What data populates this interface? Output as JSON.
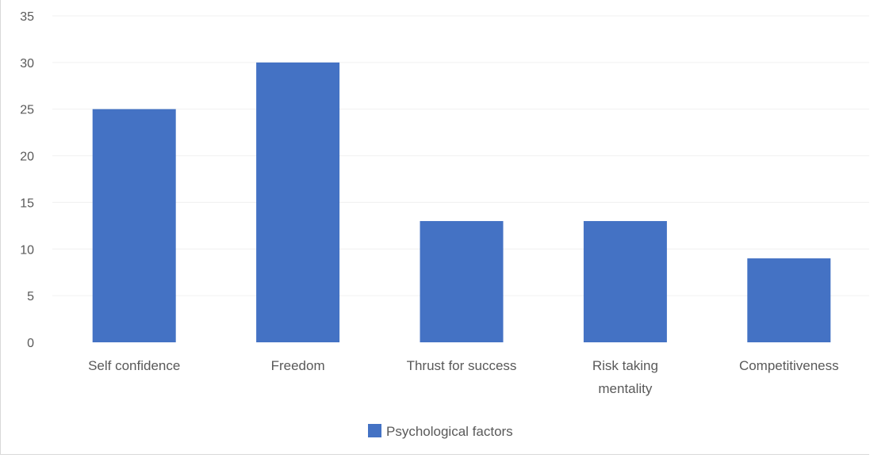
{
  "chart_data": {
    "type": "bar",
    "categories": [
      [
        "Self confidence"
      ],
      [
        "Freedom"
      ],
      [
        "Thrust for success"
      ],
      [
        "Risk taking",
        "mentality"
      ],
      [
        "Competitiveness"
      ]
    ],
    "series": [
      {
        "name": "Psychological factors",
        "values": [
          25,
          30,
          13,
          13,
          9
        ],
        "color": "#4472c4"
      }
    ],
    "yticks": [
      "0",
      "5",
      "10",
      "15",
      "20",
      "25",
      "30",
      "35"
    ],
    "ylim": [
      0,
      35
    ],
    "grid": true,
    "legend": "bottom-center",
    "gridColor": "#f0f0f0",
    "textColor": "#595959"
  }
}
